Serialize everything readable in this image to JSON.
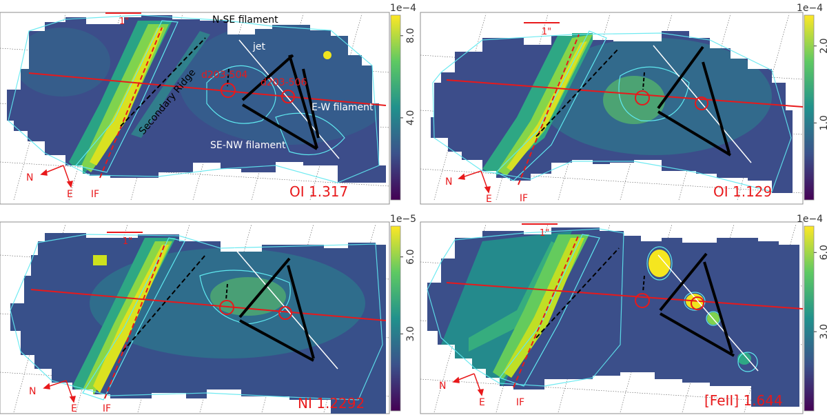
{
  "chart_data": [
    {
      "type": "heatmap",
      "line_label": "OI 1.317",
      "colorbar": {
        "scale_label": "1e−4",
        "ticks": [
          "4.0",
          "8.0"
        ],
        "tick_values": [
          4.0,
          8.0
        ],
        "max": 9.0
      },
      "scale_bar_label": "1\"",
      "compass": {
        "north": "N",
        "east": "E"
      },
      "if_label": "IF",
      "annotations": {
        "n_se_filament": "N-SE filament",
        "jet": "jet",
        "secondary_ridge": "Secondary Ridge",
        "d203_504": "d203-504",
        "d203_506": "d203-506",
        "e_w_filament": "E-W filament",
        "se_nw_filament": "SE-NW filament"
      }
    },
    {
      "type": "heatmap",
      "line_label": "OI 1.129",
      "colorbar": {
        "scale_label": "1e−4",
        "ticks": [
          "1.0",
          "2.0"
        ],
        "tick_values": [
          1.0,
          2.0
        ],
        "max": 2.4
      },
      "scale_bar_label": "1\"",
      "compass": {
        "north": "N",
        "east": "E"
      },
      "if_label": "IF"
    },
    {
      "type": "heatmap",
      "line_label": "NI 1.2292",
      "colorbar": {
        "scale_label": "1e−5",
        "ticks": [
          "3.0",
          "6.0"
        ],
        "tick_values": [
          3.0,
          6.0
        ],
        "max": 7.2
      },
      "scale_bar_label": "1\"",
      "compass": {
        "north": "N",
        "east": "E"
      },
      "if_label": "IF"
    },
    {
      "type": "heatmap",
      "line_label": "[FeII] 1.644",
      "colorbar": {
        "scale_label": "1e−4",
        "ticks": [
          "3.0",
          "6.0"
        ],
        "tick_values": [
          3.0,
          6.0
        ],
        "max": 7.0
      },
      "scale_bar_label": "1\"",
      "compass": {
        "north": "N",
        "east": "E"
      },
      "if_label": "IF"
    }
  ],
  "colors": {
    "frame": "#8c8c8c",
    "contour": "#5fe8ef",
    "guide_red": "#e8191b",
    "jet_line": "#ffffff",
    "filament_black": "#000000",
    "colormap": [
      "#440154",
      "#3b528b",
      "#21918c",
      "#5ec962",
      "#fde725"
    ]
  }
}
